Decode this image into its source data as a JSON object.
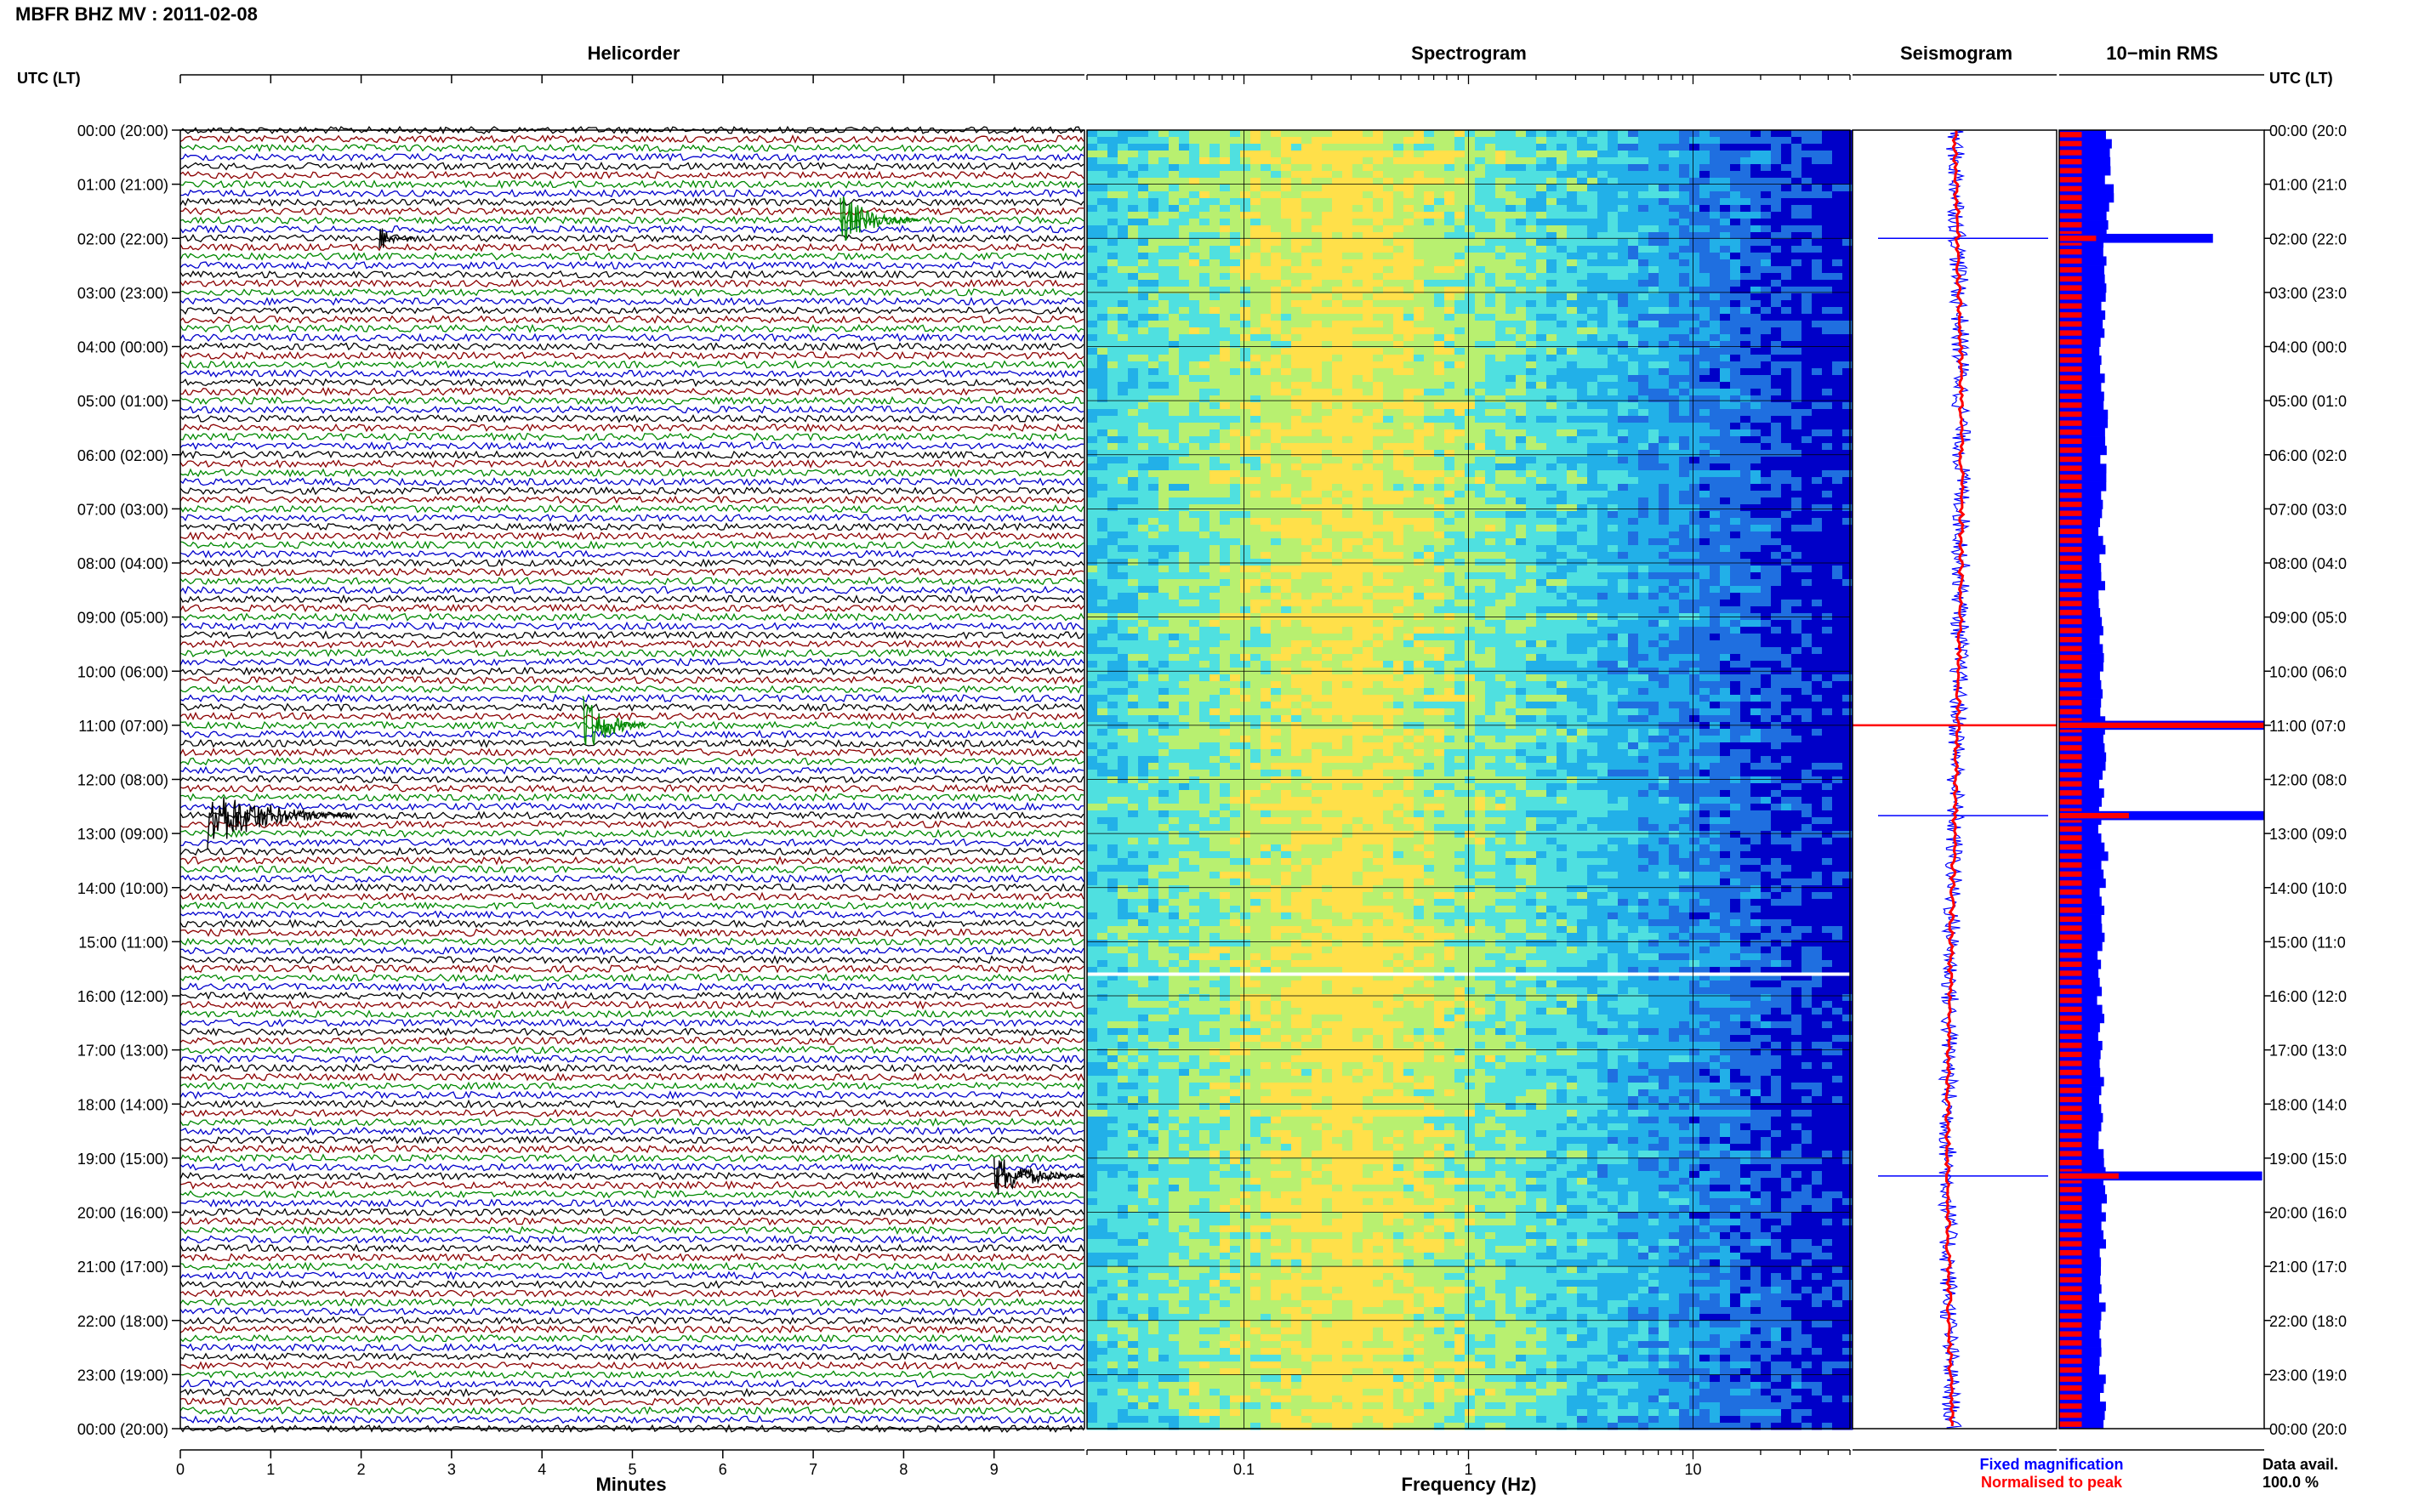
{
  "header": {
    "title": "MBFR BHZ MV : 2011-02-08"
  },
  "axis_left_title": "UTC (LT)",
  "axis_right_title": "UTC (LT)",
  "panels": {
    "helicorder": "Helicorder",
    "spectrogram": "Spectrogram",
    "seismogram": "Seismogram",
    "rms": "10−min RMS"
  },
  "footer": {
    "legend_fixed": "Fixed magnification",
    "legend_norm": "Normalised to peak",
    "data_avail_label": "Data avail.",
    "data_avail_value": "100.0 %"
  },
  "colors": {
    "trace_black": "#000000",
    "trace_red": "#8b0000",
    "trace_green": "#008800",
    "trace_blue": "#0000cc",
    "legend_fixed": "#0000ff",
    "legend_norm": "#ff0000",
    "rms_blue": "#0000ff",
    "rms_red": "#ff0000"
  },
  "chart_data": [
    {
      "type": "line",
      "title": "Helicorder",
      "xlabel": "Minutes",
      "x_ticks": [
        "0",
        "1",
        "2",
        "3",
        "4",
        "5",
        "6",
        "7",
        "8",
        "9"
      ],
      "xlim": [
        0,
        10
      ],
      "trace_colors_cycle": [
        "black",
        "red",
        "green",
        "blue"
      ],
      "rows_per_hour": 6,
      "hour_labels_left": [
        "00:00 (20:00)",
        "01:00 (21:00)",
        "02:00 (22:00)",
        "03:00 (23:00)",
        "04:00 (00:00)",
        "05:00 (01:00)",
        "06:00 (02:00)",
        "07:00 (03:00)",
        "08:00 (04:00)",
        "09:00 (05:00)",
        "10:00 (06:00)",
        "11:00 (07:00)",
        "12:00 (08:00)",
        "13:00 (09:00)",
        "14:00 (10:00)",
        "15:00 (11:00)",
        "16:00 (12:00)",
        "17:00 (13:00)",
        "18:00 (14:00)",
        "19:00 (15:00)",
        "20:00 (16:00)",
        "21:00 (17:00)",
        "22:00 (18:00)",
        "23:00 (19:00)",
        "00:00 (20:00)"
      ],
      "hour_labels_right": [
        "00:00 (20:0",
        "01:00 (21:0",
        "02:00 (22:0",
        "03:00 (23:0",
        "04:00 (00:0",
        "05:00 (01:0",
        "06:00 (02:0",
        "07:00 (03:0",
        "08:00 (04:0",
        "09:00 (05:0",
        "10:00 (06:0",
        "11:00 (07:0",
        "12:00 (08:0",
        "13:00 (09:0",
        "14:00 (10:0",
        "15:00 (11:0",
        "16:00 (12:0",
        "17:00 (13:0",
        "18:00 (14:0",
        "19:00 (15:0",
        "20:00 (16:0",
        "21:00 (17:0",
        "22:00 (18:0",
        "23:00 (19:0",
        "00:00 (20:0"
      ],
      "events": [
        {
          "hour": 1.67,
          "minute": 7.3,
          "strength": 0.8,
          "duration": 0.9
        },
        {
          "hour": 2.0,
          "minute": 2.2,
          "strength": 0.4,
          "duration": 0.4
        },
        {
          "hour": 11.0,
          "minute": 4.45,
          "strength": 1.0,
          "duration": 0.7
        },
        {
          "hour": 12.67,
          "minute": 0.3,
          "strength": 1.0,
          "duration": 1.6
        },
        {
          "hour": 19.33,
          "minute": 9.0,
          "strength": 0.7,
          "duration": 1.0
        }
      ]
    },
    {
      "type": "heatmap",
      "title": "Spectrogram",
      "xlabel": "Frequency (Hz)",
      "x_scale": "log",
      "xlim": [
        0.02,
        50
      ],
      "x_ticks": [
        "0.1",
        "1",
        "10"
      ],
      "colormap": [
        "#0000c8",
        "#1f6fe0",
        "#22b0e8",
        "#4fe0e0",
        "#b8f070",
        "#ffe04a"
      ],
      "band_peak_hz": 0.28,
      "gap_hours": [
        15.6
      ]
    },
    {
      "type": "line",
      "title": "Seismogram",
      "series": [
        {
          "name": "Fixed magnification",
          "color": "blue"
        },
        {
          "name": "Normalised to peak",
          "color": "red"
        }
      ],
      "spikes_hours": [
        2.0,
        11.0,
        12.67,
        19.33
      ]
    },
    {
      "type": "bar",
      "title": "10−min RMS",
      "series": [
        {
          "name": "Fixed magnification",
          "color": "blue"
        },
        {
          "name": "Normalised to peak",
          "color": "red"
        }
      ],
      "x": [
        "00:00",
        "01:00",
        "02:00",
        "03:00",
        "04:00",
        "05:00",
        "06:00",
        "07:00",
        "08:00",
        "09:00",
        "10:00",
        "11:00",
        "12:00",
        "13:00",
        "14:00",
        "15:00",
        "16:00",
        "17:00",
        "18:00",
        "19:00",
        "20:00",
        "21:00",
        "22:00",
        "23:00"
      ],
      "blue_level_per_hour": [
        0.24,
        0.25,
        0.22,
        0.22,
        0.21,
        0.22,
        0.22,
        0.21,
        0.21,
        0.21,
        0.21,
        0.21,
        0.2,
        0.22,
        0.21,
        0.2,
        0.2,
        0.2,
        0.21,
        0.22,
        0.21,
        0.21,
        0.21,
        0.21
      ],
      "red_level": 0.2,
      "peaks": [
        {
          "hour": 2.0,
          "blue": 0.75,
          "red": 0.18
        },
        {
          "hour": 11.0,
          "blue": 1.0,
          "red": 1.0
        },
        {
          "hour": 12.67,
          "blue": 1.0,
          "red": 0.34
        },
        {
          "hour": 19.33,
          "blue": 0.99,
          "red": 0.29
        }
      ]
    }
  ]
}
